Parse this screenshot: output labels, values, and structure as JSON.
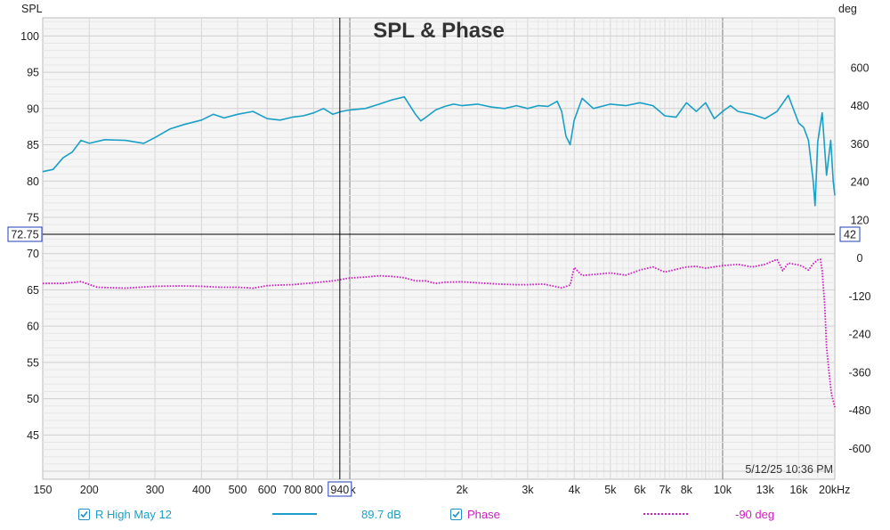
{
  "chart_data": {
    "type": "line",
    "title": "SPL & Phase",
    "left_axis_unit": "SPL",
    "right_axis_unit": "deg",
    "xscale": "log",
    "xlim": [
      150,
      20000
    ],
    "x_ticks": [
      {
        "value": 150,
        "label": "150"
      },
      {
        "value": 200,
        "label": "200"
      },
      {
        "value": 300,
        "label": "300"
      },
      {
        "value": 400,
        "label": "400"
      },
      {
        "value": 500,
        "label": "500"
      },
      {
        "value": 600,
        "label": "600"
      },
      {
        "value": 700,
        "label": "700"
      },
      {
        "value": 800,
        "label": "800"
      },
      {
        "value": 1000,
        "label": "1k"
      },
      {
        "value": 2000,
        "label": "2k"
      },
      {
        "value": 3000,
        "label": "3k"
      },
      {
        "value": 4000,
        "label": "4k"
      },
      {
        "value": 5000,
        "label": "5k"
      },
      {
        "value": 6000,
        "label": "6k"
      },
      {
        "value": 7000,
        "label": "7k"
      },
      {
        "value": 8000,
        "label": "8k"
      },
      {
        "value": 10000,
        "label": "10k"
      },
      {
        "value": 13000,
        "label": "13k"
      },
      {
        "value": 16000,
        "label": "16k"
      },
      {
        "value": 20000,
        "label": "20kHz"
      }
    ],
    "ylim_left": [
      38.9,
      102.5
    ],
    "y_ticks_left": [
      45,
      50,
      55,
      60,
      65,
      70,
      75,
      80,
      85,
      90,
      95,
      100
    ],
    "ylim_right": [
      -697,
      757
    ],
    "y_ticks_right": [
      -600,
      -480,
      -360,
      -240,
      -120,
      0,
      120,
      240,
      360,
      480,
      600
    ],
    "grid": true,
    "cursor": {
      "x_label": "940",
      "x_value": 940,
      "spl_label": "72.75",
      "deg_label": "42"
    },
    "timestamp": "5/12/25 10:36 PM",
    "series": [
      {
        "name": "R High May 12",
        "axis": "left",
        "color": "#1a9fc6",
        "readout": "89.7 dB",
        "points": [
          [
            150,
            81.3
          ],
          [
            160,
            81.6
          ],
          [
            170,
            83.2
          ],
          [
            180,
            84.0
          ],
          [
            190,
            85.6
          ],
          [
            200,
            85.2
          ],
          [
            220,
            85.7
          ],
          [
            250,
            85.6
          ],
          [
            280,
            85.2
          ],
          [
            300,
            86.0
          ],
          [
            330,
            87.2
          ],
          [
            360,
            87.8
          ],
          [
            400,
            88.4
          ],
          [
            430,
            89.2
          ],
          [
            460,
            88.7
          ],
          [
            500,
            89.2
          ],
          [
            550,
            89.6
          ],
          [
            600,
            88.6
          ],
          [
            650,
            88.4
          ],
          [
            700,
            88.8
          ],
          [
            750,
            89.0
          ],
          [
            800,
            89.4
          ],
          [
            850,
            90.0
          ],
          [
            900,
            89.2
          ],
          [
            950,
            89.6
          ],
          [
            1000,
            89.8
          ],
          [
            1100,
            90.0
          ],
          [
            1200,
            90.6
          ],
          [
            1300,
            91.2
          ],
          [
            1400,
            91.6
          ],
          [
            1500,
            89.2
          ],
          [
            1550,
            88.3
          ],
          [
            1600,
            88.8
          ],
          [
            1700,
            89.8
          ],
          [
            1800,
            90.3
          ],
          [
            1900,
            90.6
          ],
          [
            2000,
            90.4
          ],
          [
            2200,
            90.6
          ],
          [
            2400,
            90.2
          ],
          [
            2600,
            90.0
          ],
          [
            2800,
            90.4
          ],
          [
            3000,
            90.0
          ],
          [
            3200,
            90.4
          ],
          [
            3400,
            90.3
          ],
          [
            3600,
            91.0
          ],
          [
            3700,
            89.6
          ],
          [
            3800,
            86.2
          ],
          [
            3900,
            85.0
          ],
          [
            4000,
            88.4
          ],
          [
            4200,
            91.4
          ],
          [
            4500,
            90.0
          ],
          [
            5000,
            90.6
          ],
          [
            5500,
            90.4
          ],
          [
            6000,
            90.8
          ],
          [
            6500,
            90.4
          ],
          [
            7000,
            89.0
          ],
          [
            7500,
            88.8
          ],
          [
            8000,
            90.8
          ],
          [
            8500,
            89.6
          ],
          [
            9000,
            90.8
          ],
          [
            9500,
            88.6
          ],
          [
            10000,
            89.6
          ],
          [
            10500,
            90.4
          ],
          [
            11000,
            89.6
          ],
          [
            12000,
            89.2
          ],
          [
            13000,
            88.6
          ],
          [
            14000,
            89.6
          ],
          [
            15000,
            91.8
          ],
          [
            16000,
            88.0
          ],
          [
            16500,
            87.4
          ],
          [
            17000,
            85.6
          ],
          [
            17500,
            80.0
          ],
          [
            17700,
            76.6
          ],
          [
            18000,
            85.4
          ],
          [
            18500,
            89.4
          ],
          [
            19000,
            80.8
          ],
          [
            19500,
            85.6
          ],
          [
            19800,
            80.0
          ],
          [
            20000,
            78.0
          ]
        ]
      },
      {
        "name": "Phase",
        "axis": "right",
        "color": "#cc1fbf",
        "readout": "-90 deg",
        "points": [
          [
            150,
            -80
          ],
          [
            170,
            -80
          ],
          [
            190,
            -74
          ],
          [
            210,
            -92
          ],
          [
            250,
            -95
          ],
          [
            300,
            -89
          ],
          [
            350,
            -88
          ],
          [
            400,
            -89
          ],
          [
            450,
            -92
          ],
          [
            500,
            -92
          ],
          [
            550,
            -95
          ],
          [
            600,
            -87
          ],
          [
            650,
            -85
          ],
          [
            700,
            -84
          ],
          [
            800,
            -78
          ],
          [
            900,
            -72
          ],
          [
            1000,
            -63
          ],
          [
            1100,
            -60
          ],
          [
            1200,
            -56
          ],
          [
            1300,
            -58
          ],
          [
            1400,
            -62
          ],
          [
            1500,
            -72
          ],
          [
            1600,
            -72
          ],
          [
            1700,
            -80
          ],
          [
            1800,
            -76
          ],
          [
            2000,
            -75
          ],
          [
            2200,
            -78
          ],
          [
            2500,
            -82
          ],
          [
            2800,
            -84
          ],
          [
            3000,
            -84
          ],
          [
            3300,
            -82
          ],
          [
            3500,
            -88
          ],
          [
            3700,
            -94
          ],
          [
            3900,
            -85
          ],
          [
            4000,
            -30
          ],
          [
            4200,
            -55
          ],
          [
            4500,
            -52
          ],
          [
            5000,
            -47
          ],
          [
            5500,
            -54
          ],
          [
            6000,
            -38
          ],
          [
            6500,
            -28
          ],
          [
            7000,
            -44
          ],
          [
            7500,
            -36
          ],
          [
            8000,
            -28
          ],
          [
            8500,
            -26
          ],
          [
            9000,
            -32
          ],
          [
            10000,
            -24
          ],
          [
            11000,
            -20
          ],
          [
            12000,
            -28
          ],
          [
            13000,
            -20
          ],
          [
            14000,
            -4
          ],
          [
            14500,
            -40
          ],
          [
            15000,
            -16
          ],
          [
            16000,
            -22
          ],
          [
            16500,
            -28
          ],
          [
            17000,
            -38
          ],
          [
            17500,
            -18
          ],
          [
            18000,
            -6
          ],
          [
            18300,
            -4
          ],
          [
            18500,
            -40
          ],
          [
            18800,
            -150
          ],
          [
            19000,
            -280
          ],
          [
            19300,
            -360
          ],
          [
            19600,
            -430
          ],
          [
            19800,
            -450
          ],
          [
            20000,
            -470
          ]
        ]
      }
    ]
  },
  "legend": {
    "spl_label": "R High May 12",
    "spl_value": "89.7 dB",
    "phase_label": "Phase",
    "phase_value": "-90 deg"
  }
}
